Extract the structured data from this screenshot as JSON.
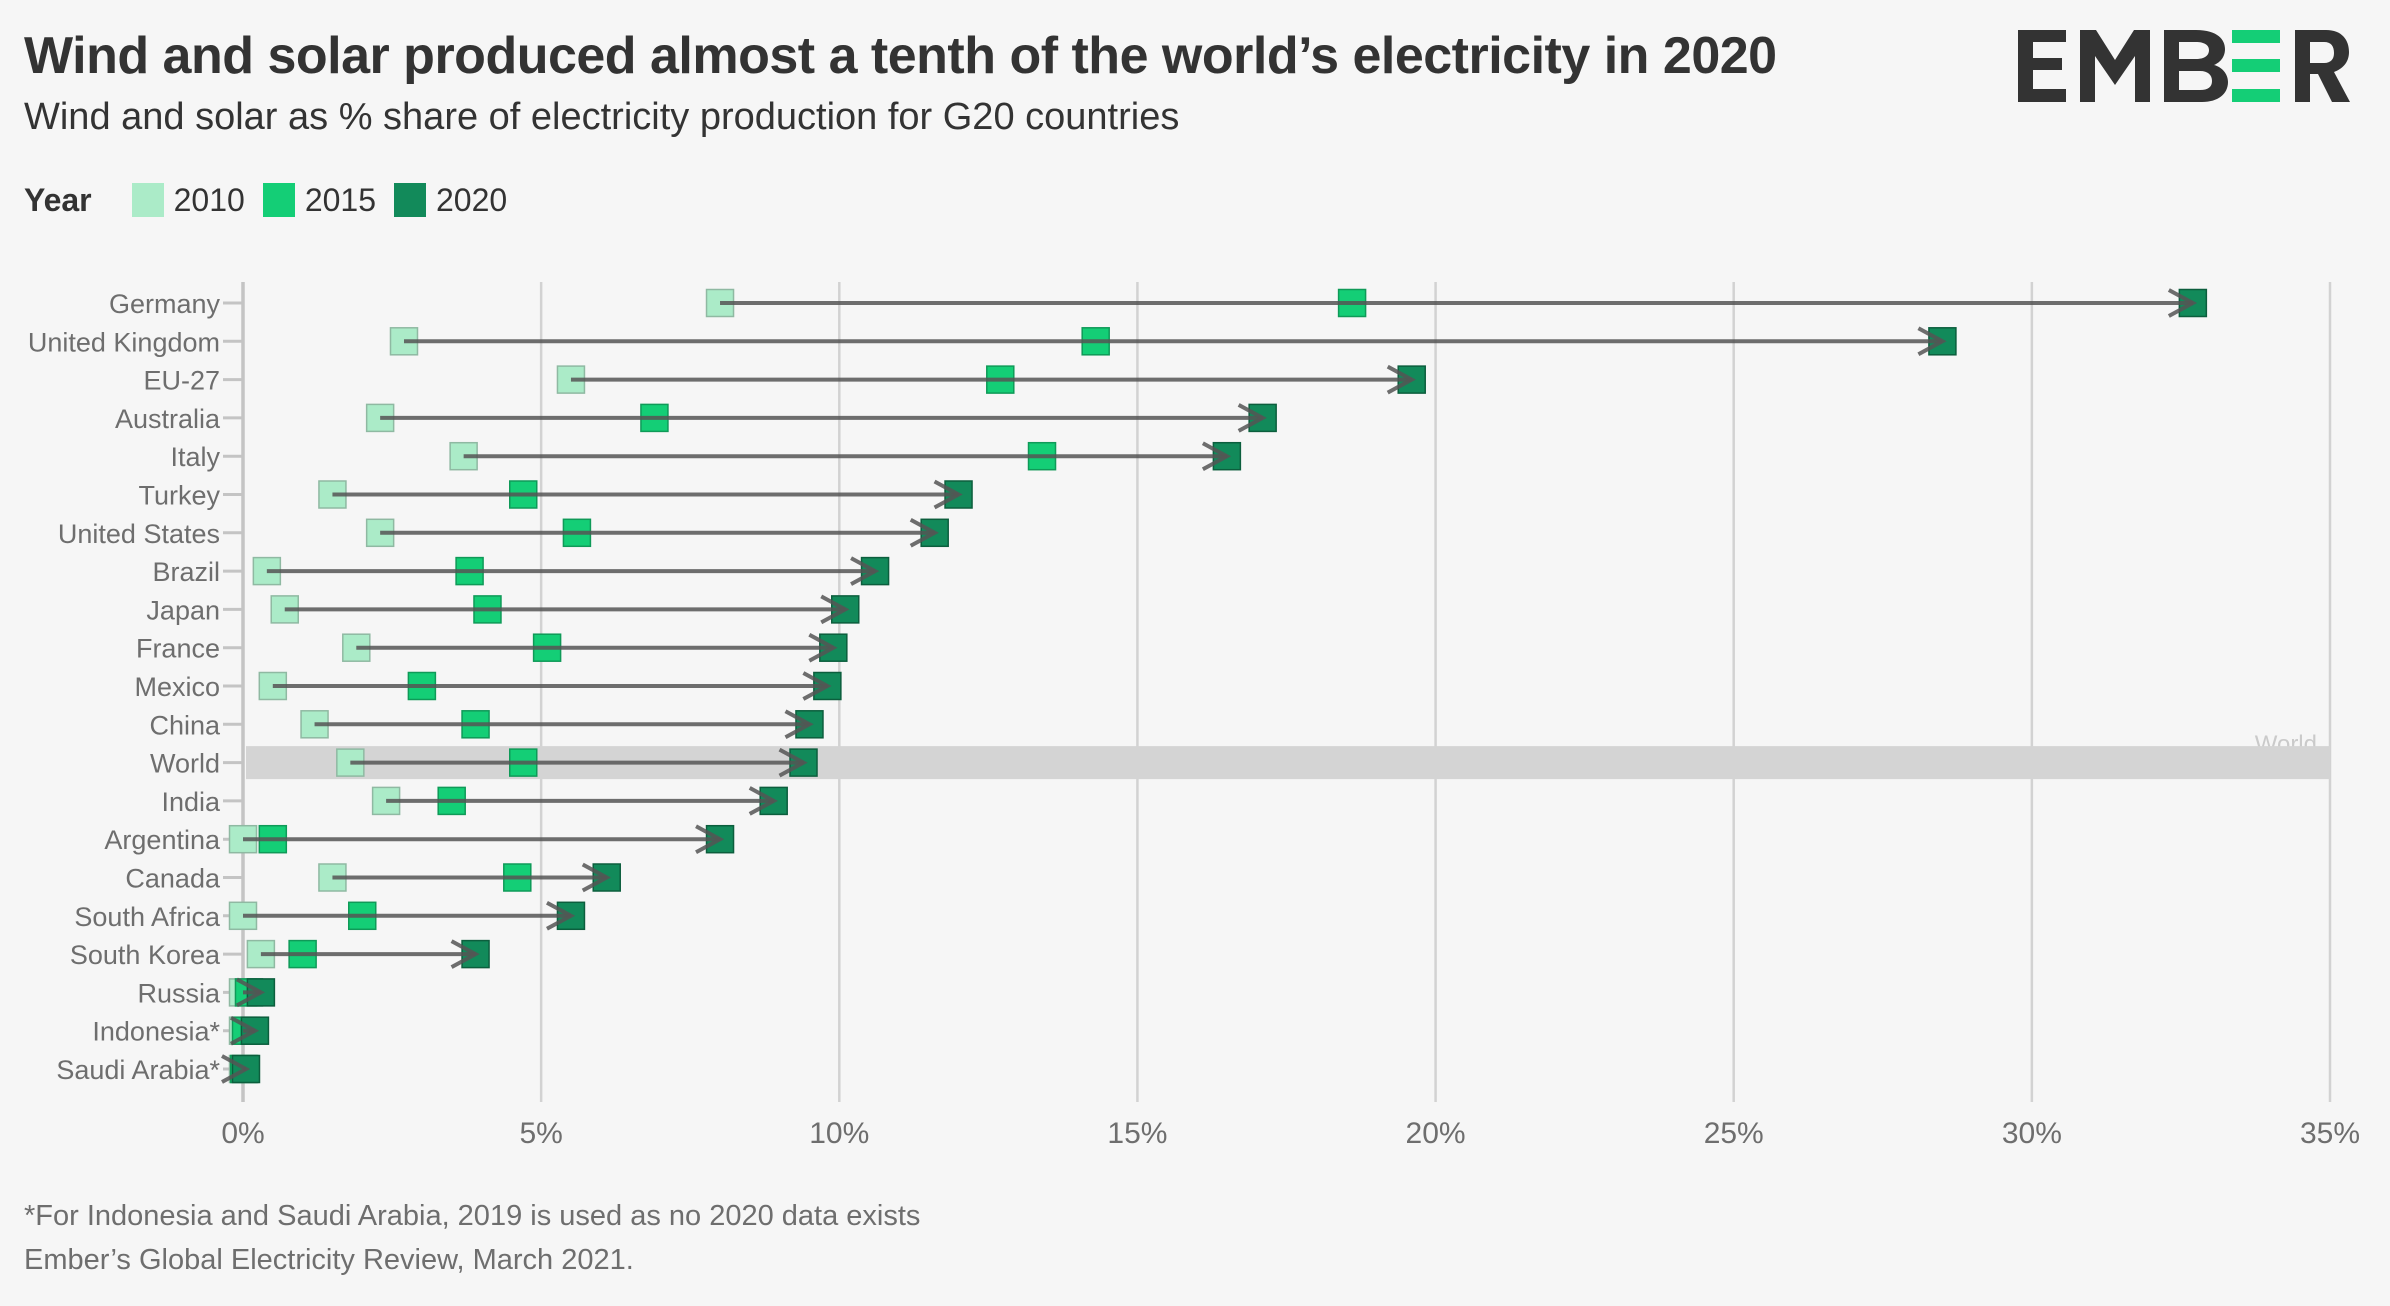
{
  "header": {
    "title": "Wind and solar produced almost a tenth of the world’s electricity in 2020",
    "subtitle": "Wind and solar as % share of electricity production for G20 countries",
    "logo_text": "EMBER",
    "logo_icon": "ember-logo-icon"
  },
  "legend": {
    "title": "Year",
    "items": [
      {
        "label": "2010",
        "color": "#abebc8"
      },
      {
        "label": "2015",
        "color": "#14ce76"
      },
      {
        "label": "2020",
        "color": "#128a5a"
      }
    ]
  },
  "colors": {
    "brand_green": "#14ce76",
    "text_dark": "#333333",
    "highlight_band": "#d4d4d4",
    "arrow": "#555555"
  },
  "chart_data": {
    "type": "scatter",
    "subtype": "dumbbell-arrow",
    "title": "Wind and solar produced almost a tenth of the world’s electricity in 2020",
    "subtitle": "Wind and solar as % share of electricity production for G20 countries",
    "xlabel": "",
    "ylabel": "",
    "xlim": [
      0,
      35
    ],
    "xticks": [
      0,
      5,
      10,
      15,
      20,
      25,
      30,
      35
    ],
    "xtick_labels": [
      "0%",
      "5%",
      "10%",
      "15%",
      "20%",
      "25%",
      "30%",
      "35%"
    ],
    "grid": "vertical",
    "legend_position": "top-left",
    "highlight": {
      "category": "World",
      "label": "World"
    },
    "categories": [
      "Germany",
      "United Kingdom",
      "EU-27",
      "Australia",
      "Italy",
      "Turkey",
      "United States",
      "Brazil",
      "Japan",
      "France",
      "Mexico",
      "China",
      "World",
      "India",
      "Argentina",
      "Canada",
      "South Africa",
      "South Korea",
      "Russia",
      "Indonesia*",
      "Saudi Arabia*"
    ],
    "series": [
      {
        "name": "2010",
        "values": [
          8.0,
          2.7,
          5.5,
          2.3,
          3.7,
          1.5,
          2.3,
          0.4,
          0.7,
          1.9,
          0.5,
          1.2,
          1.8,
          2.4,
          0.0,
          1.5,
          0.0,
          0.3,
          0.0,
          0.0,
          0.0
        ]
      },
      {
        "name": "2015",
        "values": [
          18.6,
          14.3,
          12.7,
          6.9,
          13.4,
          4.7,
          5.6,
          3.8,
          4.1,
          5.1,
          3.0,
          3.9,
          4.7,
          3.5,
          0.5,
          4.6,
          2.0,
          1.0,
          0.1,
          0.05,
          0.02
        ]
      },
      {
        "name": "2020",
        "values": [
          32.7,
          28.5,
          19.6,
          17.1,
          16.5,
          12.0,
          11.6,
          10.6,
          10.1,
          9.9,
          9.8,
          9.5,
          9.4,
          8.9,
          8.0,
          6.1,
          5.5,
          3.9,
          0.3,
          0.2,
          0.05
        ]
      }
    ]
  },
  "footer": {
    "note": "*For Indonesia and Saudi Arabia, 2019 is used as no 2020 data exists",
    "source": "Ember’s Global Electricity Review, March 2021."
  }
}
